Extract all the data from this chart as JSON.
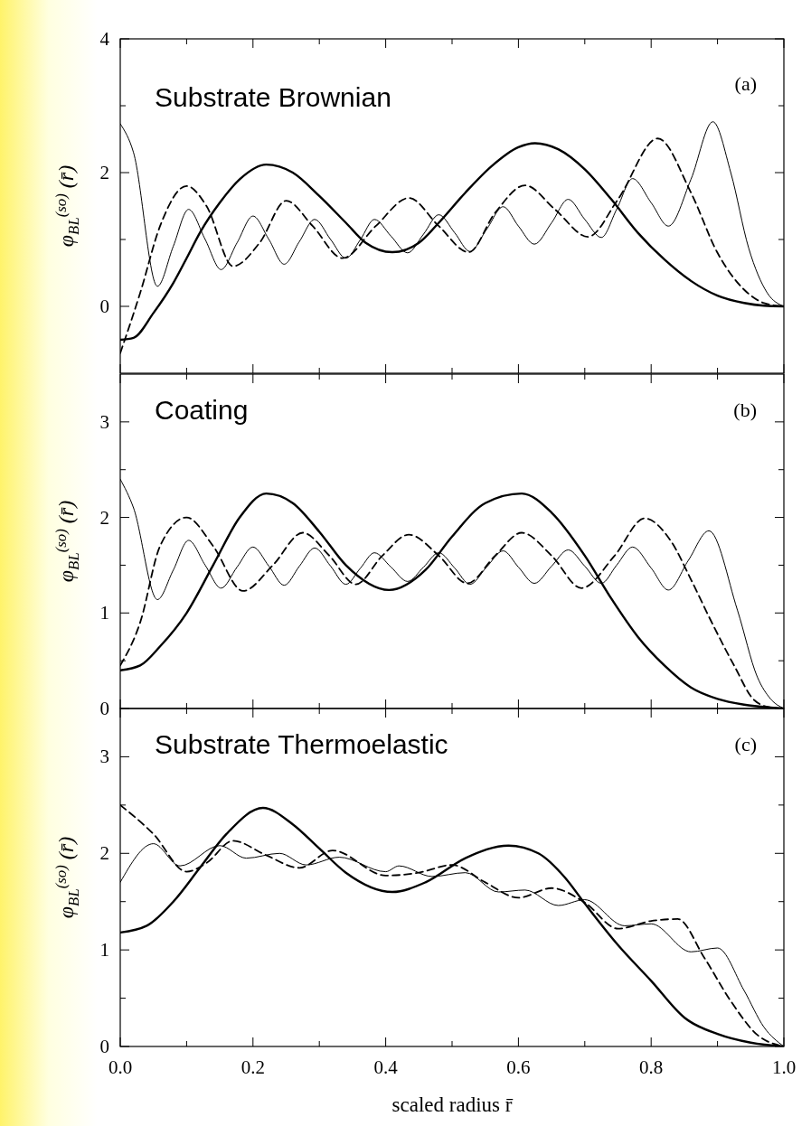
{
  "chart_data": [
    {
      "type": "line",
      "title": "Substrate Brownian",
      "annotations": [
        "(a)"
      ],
      "ylabel": "φ$_{BL}$$^{(so)}$ (r̄)",
      "tick_labels": "y",
      "xlim": [
        0,
        1
      ],
      "ylim": [
        -1,
        4
      ],
      "xticks": [
        {
          "value": 0,
          "label": null
        },
        {
          "value": 0.1,
          "label": null
        },
        {
          "value": 0.2,
          "label": null
        },
        {
          "value": 0.3,
          "label": null
        },
        {
          "value": 0.4,
          "label": null
        },
        {
          "value": 0.5,
          "label": null
        },
        {
          "value": 0.6,
          "label": null
        },
        {
          "value": 0.7,
          "label": null
        },
        {
          "value": 0.8,
          "label": null
        },
        {
          "value": 0.9,
          "label": null
        },
        {
          "value": 1,
          "label": null
        }
      ],
      "yticks": [
        0,
        {
          "value": 1,
          "label": null
        },
        2,
        {
          "value": 3,
          "label": null
        },
        4
      ],
      "series": [
        {
          "color": "#000000",
          "line_style": "solid",
          "x": [
            0,
            0.02,
            0.05,
            0.08,
            0.1,
            0.12,
            0.15,
            0.18,
            0.22,
            0.26,
            0.3,
            0.34,
            0.37,
            0.41,
            0.45,
            0.48,
            0.52,
            0.56,
            0.6,
            0.625,
            0.66,
            0.7,
            0.74,
            0.78,
            0.82,
            0.86,
            0.9,
            0.94,
            0.97,
            1
          ],
          "values": [
            -0.5,
            -0.47,
            -0.1,
            0.35,
            0.72,
            1.1,
            1.55,
            1.9,
            2.12,
            2.0,
            1.65,
            1.25,
            0.95,
            0.81,
            0.95,
            1.25,
            1.7,
            2.1,
            2.38,
            2.44,
            2.35,
            2.05,
            1.6,
            1.1,
            0.7,
            0.38,
            0.16,
            0.05,
            0.01,
            0
          ]
        },
        {
          "color": "#000000",
          "line_style": "dashed",
          "x": [
            0,
            0.03,
            0.06,
            0.1,
            0.13,
            0.17,
            0.21,
            0.25,
            0.29,
            0.335,
            0.385,
            0.435,
            0.48,
            0.525,
            0.565,
            0.61,
            0.655,
            0.705,
            0.75,
            0.81,
            0.86,
            0.9,
            0.94,
            0.97,
            1
          ],
          "values": [
            -0.7,
            0.2,
            1.2,
            1.8,
            1.5,
            0.6,
            0.95,
            1.58,
            1.2,
            0.72,
            1.2,
            1.62,
            1.2,
            0.81,
            1.4,
            1.81,
            1.45,
            1.04,
            1.6,
            2.51,
            1.7,
            0.8,
            0.25,
            0.05,
            0
          ]
        },
        {
          "color": "#000000",
          "line_style": "solid",
          "x": [
            0,
            0.02,
            0.056,
            0.08,
            0.103,
            0.128,
            0.152,
            0.176,
            0.2,
            0.224,
            0.247,
            0.27,
            0.293,
            0.317,
            0.34,
            0.362,
            0.383,
            0.408,
            0.433,
            0.457,
            0.48,
            0.504,
            0.527,
            0.552,
            0.577,
            0.6,
            0.624,
            0.65,
            0.675,
            0.7,
            0.725,
            0.748,
            0.772,
            0.8,
            0.826,
            0.86,
            0.893,
            0.92,
            0.947,
            0.975,
            1
          ],
          "values": [
            2.73,
            2.3,
            0.3,
            0.9,
            1.45,
            1.0,
            0.55,
            0.95,
            1.35,
            1.0,
            0.63,
            0.97,
            1.3,
            1.0,
            0.72,
            1.0,
            1.3,
            1.05,
            0.8,
            1.08,
            1.37,
            1.1,
            0.82,
            1.15,
            1.49,
            1.2,
            0.93,
            1.25,
            1.6,
            1.3,
            1.03,
            1.45,
            1.91,
            1.55,
            1.2,
            1.9,
            2.76,
            2.0,
            0.87,
            0.2,
            0
          ]
        }
      ]
    },
    {
      "type": "line",
      "title": "Coating",
      "annotations": [
        "(b)"
      ],
      "ylabel": "φ$_{BL}$$^{(so)}$ (r̄)",
      "tick_labels": "y",
      "xlim": [
        0,
        1
      ],
      "ylim": [
        0,
        3.5
      ],
      "xticks": [
        {
          "value": 0,
          "label": null
        },
        {
          "value": 0.1,
          "label": null
        },
        {
          "value": 0.2,
          "label": null
        },
        {
          "value": 0.3,
          "label": null
        },
        {
          "value": 0.4,
          "label": null
        },
        {
          "value": 0.5,
          "label": null
        },
        {
          "value": 0.6,
          "label": null
        },
        {
          "value": 0.7,
          "label": null
        },
        {
          "value": 0.8,
          "label": null
        },
        {
          "value": 0.9,
          "label": null
        },
        {
          "value": 1,
          "label": null
        }
      ],
      "yticks": [
        0,
        {
          "value": 0.5,
          "label": null
        },
        1,
        {
          "value": 1.5,
          "label": null
        },
        2,
        {
          "value": 2.5,
          "label": null
        },
        3
      ],
      "series": [
        {
          "color": "#000000",
          "line_style": "solid",
          "x": [
            0,
            0.03,
            0.06,
            0.1,
            0.14,
            0.18,
            0.22,
            0.26,
            0.3,
            0.34,
            0.405,
            0.46,
            0.5,
            0.55,
            0.605,
            0.65,
            0.7,
            0.74,
            0.78,
            0.82,
            0.86,
            0.9,
            0.94,
            0.98,
            1
          ],
          "values": [
            0.4,
            0.45,
            0.65,
            1.0,
            1.5,
            2.0,
            2.25,
            2.15,
            1.85,
            1.5,
            1.24,
            1.45,
            1.8,
            2.15,
            2.25,
            2.05,
            1.6,
            1.15,
            0.75,
            0.45,
            0.22,
            0.1,
            0.04,
            0.01,
            0
          ]
        },
        {
          "color": "#000000",
          "line_style": "dashed",
          "x": [
            0,
            0.03,
            0.06,
            0.1,
            0.14,
            0.185,
            0.23,
            0.275,
            0.315,
            0.355,
            0.395,
            0.435,
            0.48,
            0.523,
            0.565,
            0.605,
            0.65,
            0.695,
            0.745,
            0.79,
            0.83,
            0.86,
            0.89,
            0.925,
            0.955,
            0.98,
            1
          ],
          "values": [
            0.45,
            0.9,
            1.7,
            2.0,
            1.7,
            1.23,
            1.5,
            1.84,
            1.6,
            1.3,
            1.6,
            1.82,
            1.6,
            1.31,
            1.6,
            1.84,
            1.6,
            1.26,
            1.6,
            1.99,
            1.75,
            1.35,
            0.92,
            0.45,
            0.09,
            0.01,
            0
          ]
        },
        {
          "color": "#000000",
          "line_style": "solid",
          "x": [
            0,
            0.02,
            0.056,
            0.08,
            0.103,
            0.128,
            0.152,
            0.176,
            0.2,
            0.224,
            0.247,
            0.27,
            0.293,
            0.317,
            0.34,
            0.362,
            0.383,
            0.408,
            0.433,
            0.457,
            0.48,
            0.504,
            0.527,
            0.552,
            0.577,
            0.6,
            0.624,
            0.65,
            0.675,
            0.7,
            0.725,
            0.748,
            0.772,
            0.8,
            0.826,
            0.856,
            0.887,
            0.93,
            0.96,
            0.98,
            1
          ],
          "values": [
            2.4,
            2.1,
            1.14,
            1.45,
            1.76,
            1.5,
            1.26,
            1.48,
            1.69,
            1.49,
            1.29,
            1.49,
            1.68,
            1.49,
            1.3,
            1.47,
            1.63,
            1.48,
            1.33,
            1.48,
            1.63,
            1.47,
            1.3,
            1.48,
            1.65,
            1.48,
            1.31,
            1.49,
            1.66,
            1.49,
            1.31,
            1.5,
            1.69,
            1.47,
            1.24,
            1.55,
            1.86,
            1.03,
            0.33,
            0.1,
            0
          ]
        }
      ]
    },
    {
      "type": "line",
      "title": "Substrate Thermoelastic",
      "annotations": [
        "(c)"
      ],
      "ylabel": "φ$_{BL}$$^{(so)}$ (r̄)",
      "xlabel": "scaled radius r̄",
      "xlim": [
        0,
        1
      ],
      "ylim": [
        0,
        3.5
      ],
      "xticks": [
        {
          "value": 0,
          "label": "0.0"
        },
        {
          "value": 0.1,
          "label": null
        },
        {
          "value": 0.2,
          "label": "0.2"
        },
        {
          "value": 0.3,
          "label": null
        },
        {
          "value": 0.4,
          "label": "0.4"
        },
        {
          "value": 0.5,
          "label": null
        },
        {
          "value": 0.6,
          "label": "0.6"
        },
        {
          "value": 0.7,
          "label": null
        },
        {
          "value": 0.8,
          "label": "0.8"
        },
        {
          "value": 0.9,
          "label": null
        },
        {
          "value": 1,
          "label": "1.0"
        }
      ],
      "yticks": [
        0,
        {
          "value": 0.5,
          "label": null
        },
        1,
        {
          "value": 1.5,
          "label": null
        },
        2,
        {
          "value": 2.5,
          "label": null
        },
        3
      ],
      "series": [
        {
          "color": "#000000",
          "line_style": "solid",
          "x": [
            0,
            0.04,
            0.08,
            0.12,
            0.16,
            0.215,
            0.26,
            0.3,
            0.34,
            0.41,
            0.46,
            0.52,
            0.585,
            0.63,
            0.67,
            0.7,
            0.75,
            0.8,
            0.85,
            0.9,
            0.95,
            1
          ],
          "values": [
            1.18,
            1.25,
            1.5,
            1.85,
            2.2,
            2.47,
            2.3,
            2.05,
            1.8,
            1.6,
            1.7,
            1.95,
            2.08,
            2.0,
            1.75,
            1.48,
            1.05,
            0.68,
            0.3,
            0.13,
            0.04,
            0
          ]
        },
        {
          "color": "#000000",
          "line_style": "dashed",
          "x": [
            0,
            0.05,
            0.1,
            0.13,
            0.17,
            0.22,
            0.27,
            0.32,
            0.4,
            0.45,
            0.5,
            0.55,
            0.6,
            0.65,
            0.7,
            0.75,
            0.8,
            0.84,
            0.88,
            0.92,
            0.96,
            1
          ],
          "values": [
            2.5,
            2.2,
            1.81,
            1.9,
            2.13,
            1.98,
            1.85,
            2.03,
            1.77,
            1.8,
            1.88,
            1.7,
            1.54,
            1.64,
            1.49,
            1.22,
            1.3,
            1.32,
            0.92,
            0.47,
            0.12,
            0
          ]
        },
        {
          "color": "#000000",
          "line_style": "solid",
          "x": [
            0,
            0.05,
            0.09,
            0.15,
            0.19,
            0.24,
            0.28,
            0.33,
            0.4,
            0.42,
            0.47,
            0.52,
            0.57,
            0.61,
            0.66,
            0.7,
            0.76,
            0.8,
            0.86,
            0.9,
            0.94,
            0.97,
            1
          ],
          "values": [
            1.7,
            2.1,
            1.87,
            2.08,
            1.95,
            2.0,
            1.88,
            1.96,
            1.81,
            1.87,
            1.76,
            1.8,
            1.6,
            1.62,
            1.46,
            1.52,
            1.25,
            1.27,
            0.98,
            1.02,
            0.58,
            0.2,
            0
          ]
        }
      ]
    }
  ]
}
